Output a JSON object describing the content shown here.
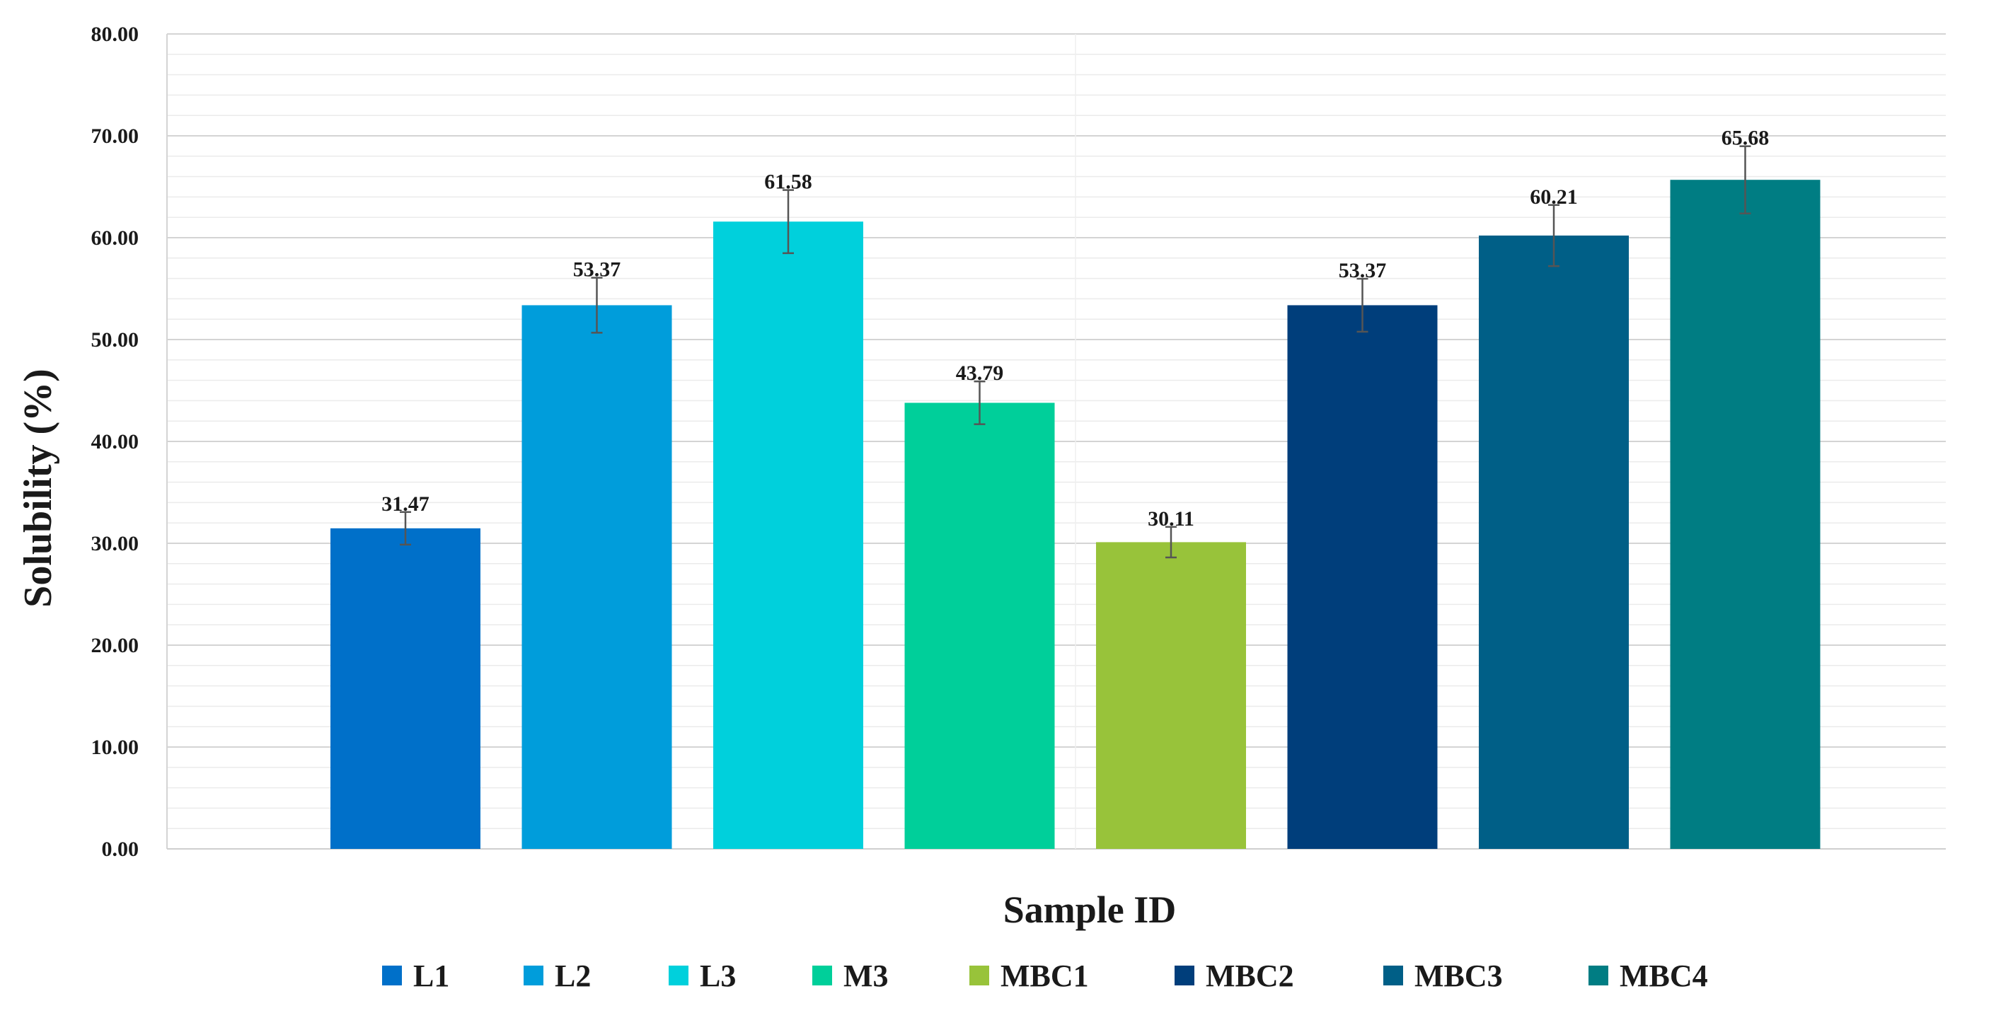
{
  "chart_data": {
    "type": "bar",
    "title": "",
    "xlabel": "Sample ID",
    "ylabel": "Solubility (%)",
    "ylim": [
      0,
      80
    ],
    "major_tick_step": 10,
    "minor_tick_step": 2,
    "grid": true,
    "legend_position": "bottom",
    "categories": [
      "L1",
      "L2",
      "L3",
      "M3",
      "MBC1",
      "MBC2",
      "MBC3",
      "MBC4"
    ],
    "values": [
      31.47,
      53.37,
      61.58,
      43.79,
      30.11,
      53.37,
      60.21,
      65.68
    ],
    "value_labels": [
      "31.47",
      "53.37",
      "61.58",
      "43.79",
      "30.11",
      "53.37",
      "60.21",
      "65.68"
    ],
    "errors": [
      1.6,
      2.7,
      3.1,
      2.1,
      1.5,
      2.6,
      3.0,
      3.3
    ],
    "colors": [
      "#0070C9",
      "#009DDB",
      "#00D0DC",
      "#00CF9A",
      "#98C33A",
      "#003E7B",
      "#005F87",
      "#007D83"
    ],
    "y_tick_labels": [
      "0.00",
      "10.00",
      "20.00",
      "30.00",
      "40.00",
      "50.00",
      "60.00",
      "70.00",
      "80.00"
    ]
  }
}
